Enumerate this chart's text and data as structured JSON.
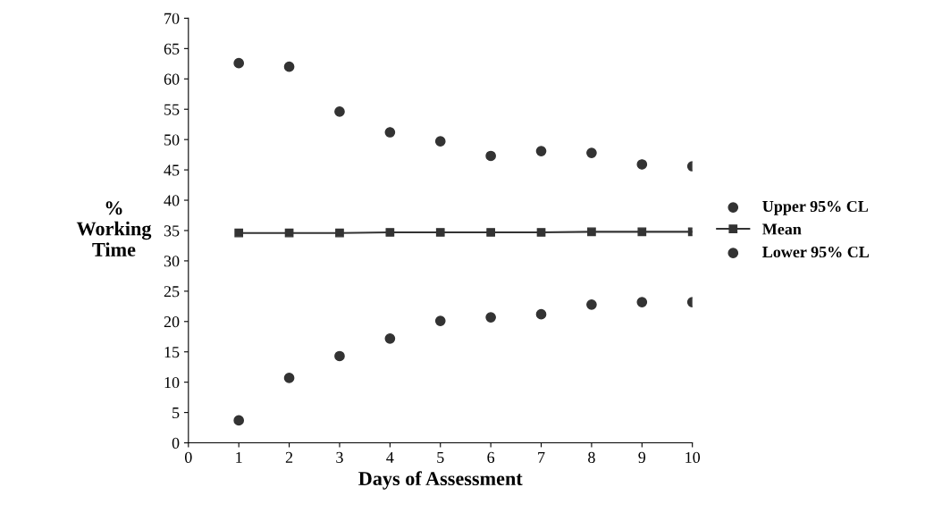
{
  "chart_data": {
    "type": "scatter",
    "xlabel": "Days of Assessment",
    "ylabel": "%\nWorking\nTime",
    "x": [
      1,
      2,
      3,
      4,
      5,
      6,
      7,
      8,
      9,
      10
    ],
    "series": [
      {
        "name": "Upper 95% CL",
        "color": "#333333",
        "marker": "circle",
        "values": [
          62.6,
          62.0,
          54.6,
          51.2,
          49.7,
          47.3,
          48.1,
          47.8,
          45.9,
          45.6
        ]
      },
      {
        "name": "Mean",
        "color": "#333333",
        "type": "line",
        "marker": "square",
        "values": [
          34.6,
          34.6,
          34.6,
          34.7,
          34.7,
          34.7,
          34.7,
          34.8,
          34.8,
          34.8
        ]
      },
      {
        "name": "Lower 95% CL",
        "color": "#333333",
        "marker": "circle",
        "values": [
          3.7,
          10.7,
          14.3,
          17.2,
          20.1,
          20.7,
          21.2,
          22.8,
          23.2,
          23.2
        ]
      }
    ],
    "xlim": [
      0,
      10
    ],
    "xticks": [
      0,
      1,
      2,
      3,
      4,
      5,
      6,
      7,
      8,
      9,
      10
    ],
    "ylim": [
      0,
      70
    ],
    "yticks": [
      0,
      5,
      10,
      15,
      20,
      25,
      30,
      35,
      40,
      45,
      50,
      55,
      60,
      65,
      70
    ],
    "grid": false,
    "legend": "right"
  }
}
